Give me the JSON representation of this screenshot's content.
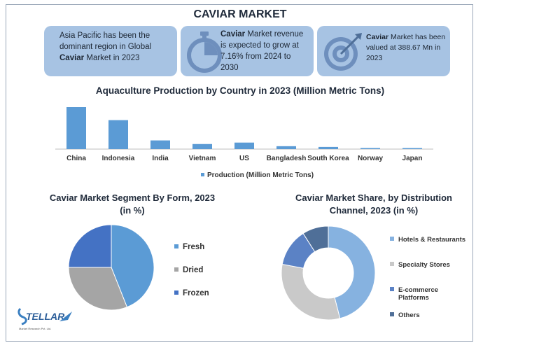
{
  "title": "CAVIAR MARKET",
  "cards": [
    {
      "pre": "Asia Pacific has been the dominant region in Global ",
      "kw": "Caviar",
      "post": " Market in 2023",
      "icon": "none"
    },
    {
      "pre": "",
      "kw": "Caviar",
      "post": " Market revenue is expected to grow at 7.16% from 2024 to 2030",
      "icon": "stopwatch-icon"
    },
    {
      "pre": "",
      "kw": "Caviar",
      "post": " Market has been valued at 388.67 Mn in 2023",
      "icon": "target-icon"
    }
  ],
  "logo": {
    "text": "STELLAR",
    "subtext": "Market Research Pvt. Ltd."
  },
  "colors": {
    "card_bg": "#a7c3e3",
    "bar": "#5b9bd5",
    "fresh": "#5b9bd5",
    "dried": "#a5a5a5",
    "frozen": "#4472c4",
    "hotels": "#86b2e0",
    "specialty": "#c9c9c9",
    "ecommerce": "#5b82c5",
    "others": "#4f6f98"
  },
  "chart_data": [
    {
      "type": "bar",
      "title": "Aquaculture Production by Country in 2023 (Million Metric Tons)",
      "categories": [
        "China",
        "Indonesia",
        "India",
        "Vietnam",
        "US",
        "Bangladesh",
        "South Korea",
        "Norway",
        "Japan"
      ],
      "series": [
        {
          "name": "Production (Million Metric Tons)",
          "values": [
            58,
            40,
            12,
            7,
            9,
            4,
            3,
            1.5,
            1
          ]
        }
      ],
      "legend": "bottom",
      "grid": false
    },
    {
      "type": "pie",
      "title": "Caviar Market Segment By Form, 2023\n(in %)",
      "labels": [
        "Fresh",
        "Dried",
        "Frozen"
      ],
      "values": [
        44,
        31,
        25
      ],
      "legend": "right"
    },
    {
      "type": "pie",
      "title": "Caviar Market Share, by Distribution Channel, 2023 (in %)",
      "labels": [
        "Hotels & Restaurants",
        "Specialty Stores",
        "E-commerce Platforms",
        "Others"
      ],
      "values": [
        46,
        32,
        13,
        9
      ],
      "legend": "right"
    }
  ]
}
